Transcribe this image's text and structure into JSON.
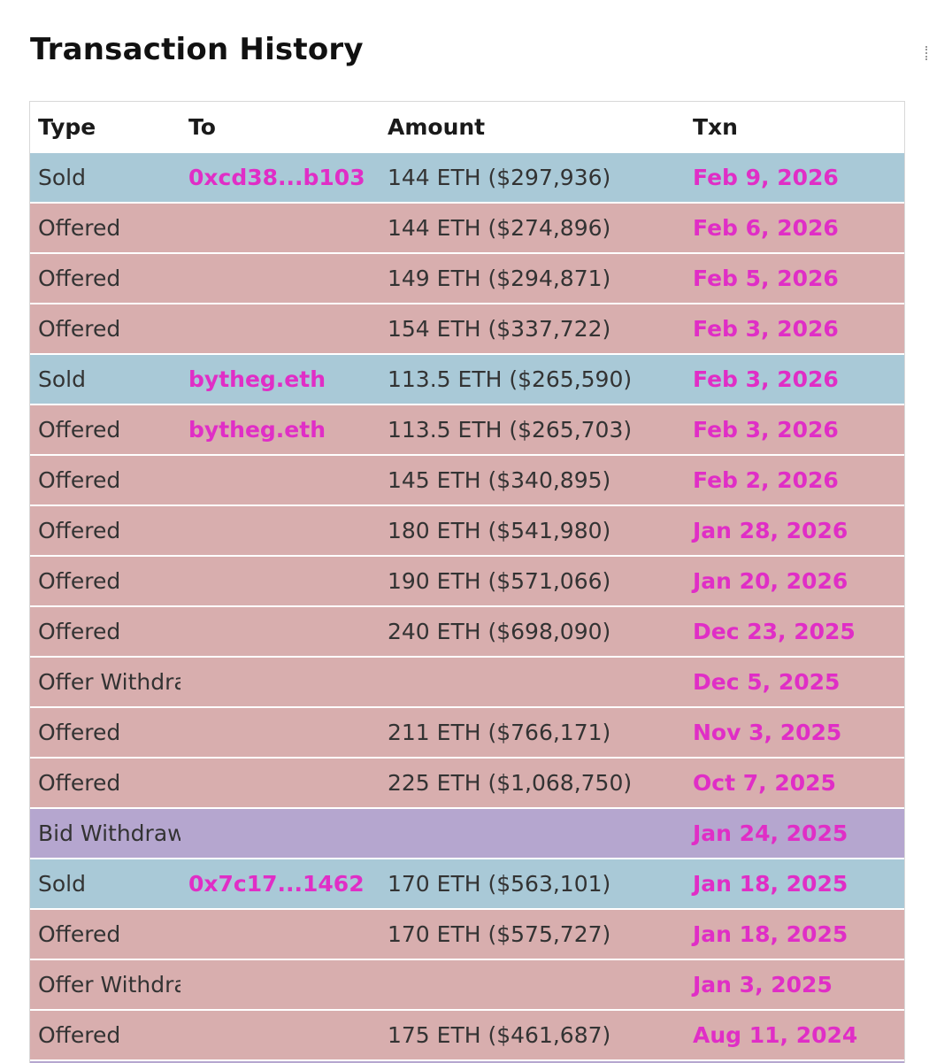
{
  "page": {
    "title": "Transaction History"
  },
  "colors": {
    "sold_row": "#a9c9d7",
    "offer_row": "#d8aeae",
    "bid_row": "#b5a6cf",
    "link": "#e02ec6"
  },
  "table": {
    "headers": {
      "type": "Type",
      "to": "To",
      "amount": "Amount",
      "txn": "Txn"
    },
    "rows": [
      {
        "type": "Sold",
        "to": "0xcd38...b103",
        "amount": "144 ETH ($297,936)",
        "txn": "Feb 9, 2026"
      },
      {
        "type": "Offered",
        "to": "",
        "amount": "144 ETH ($274,896)",
        "txn": "Feb 6, 2026"
      },
      {
        "type": "Offered",
        "to": "",
        "amount": "149 ETH ($294,871)",
        "txn": "Feb 5, 2026"
      },
      {
        "type": "Offered",
        "to": "",
        "amount": "154 ETH ($337,722)",
        "txn": "Feb 3, 2026"
      },
      {
        "type": "Sold",
        "to": "bytheg.eth",
        "amount": "113.5 ETH ($265,590)",
        "txn": "Feb 3, 2026"
      },
      {
        "type": "Offered",
        "to": "bytheg.eth",
        "amount": "113.5 ETH ($265,703)",
        "txn": "Feb 3, 2026"
      },
      {
        "type": "Offered",
        "to": "",
        "amount": "145 ETH ($340,895)",
        "txn": "Feb 2, 2026"
      },
      {
        "type": "Offered",
        "to": "",
        "amount": "180 ETH ($541,980)",
        "txn": "Jan 28, 2026"
      },
      {
        "type": "Offered",
        "to": "",
        "amount": "190 ETH ($571,066)",
        "txn": "Jan 20, 2026"
      },
      {
        "type": "Offered",
        "to": "",
        "amount": "240 ETH ($698,090)",
        "txn": "Dec 23, 2025"
      },
      {
        "type": "Offer Withdrawn",
        "to": "",
        "amount": "",
        "txn": "Dec 5, 2025"
      },
      {
        "type": "Offered",
        "to": "",
        "amount": "211 ETH ($766,171)",
        "txn": "Nov 3, 2025"
      },
      {
        "type": "Offered",
        "to": "",
        "amount": "225 ETH ($1,068,750)",
        "txn": "Oct 7, 2025"
      },
      {
        "type": "Bid Withdrawn",
        "to": "",
        "amount": "",
        "txn": "Jan 24, 2025"
      },
      {
        "type": "Sold",
        "to": "0x7c17...1462",
        "amount": "170 ETH ($563,101)",
        "txn": "Jan 18, 2025"
      },
      {
        "type": "Offered",
        "to": "",
        "amount": "170 ETH ($575,727)",
        "txn": "Jan 18, 2025"
      },
      {
        "type": "Offer Withdrawn",
        "to": "",
        "amount": "",
        "txn": "Jan 3, 2025"
      },
      {
        "type": "Offered",
        "to": "",
        "amount": "175 ETH ($461,687)",
        "txn": "Aug 11, 2024"
      }
    ]
  }
}
